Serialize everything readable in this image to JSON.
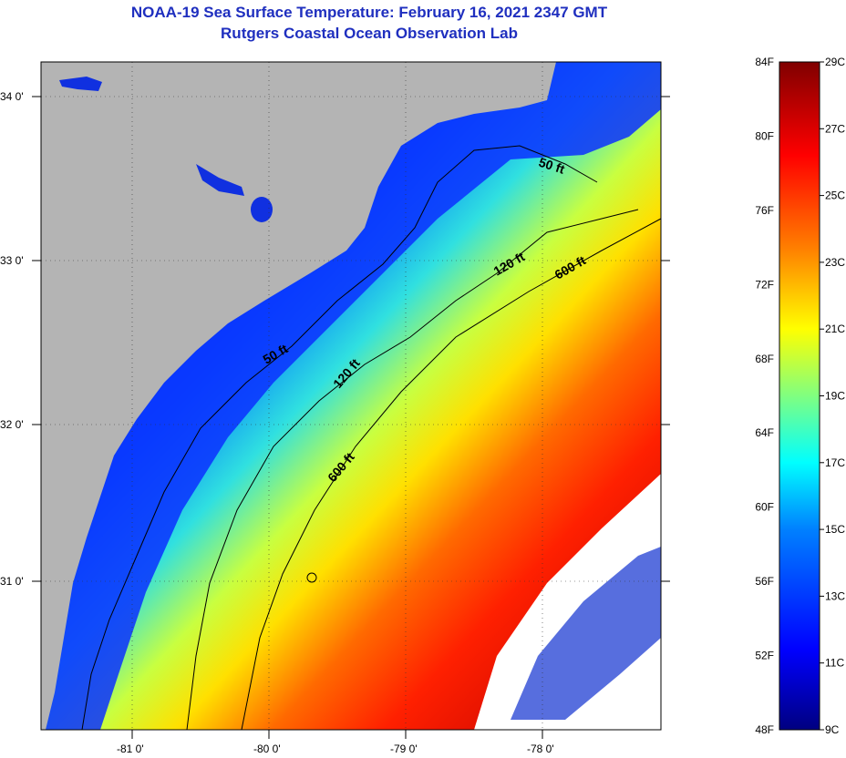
{
  "title": {
    "line1": "NOAA-19 Sea Surface Temperature:  February 16, 2021 2347 GMT",
    "line2": "Rutgers Coastal Ocean Observation Lab"
  },
  "map": {
    "lon_ticks": [
      "-81 0'",
      "-80 0'",
      "-79 0'",
      "-78 0'"
    ],
    "lat_ticks": [
      "34 0'",
      "33 0'",
      "32 0'",
      "31 0'"
    ],
    "contour_labels": [
      "50 ft",
      "120 ft",
      "600 ft",
      "50 ft",
      "120 ft",
      "600 ft"
    ],
    "colors": {
      "land": "#b4b4b4",
      "cloud": "#ffffff",
      "contour": "#000000"
    }
  },
  "colorbar": {
    "fahrenheit": [
      "84F",
      "80F",
      "76F",
      "72F",
      "68F",
      "64F",
      "60F",
      "56F",
      "52F",
      "48F"
    ],
    "celsius": [
      "29C",
      "27C",
      "25C",
      "23C",
      "21C",
      "19C",
      "17C",
      "15C",
      "13C",
      "11C",
      "9C"
    ],
    "stops": [
      "#000080",
      "#0000ff",
      "#0080ff",
      "#00ffff",
      "#80ff80",
      "#ffff00",
      "#ff8000",
      "#ff0000",
      "#800000"
    ]
  }
}
